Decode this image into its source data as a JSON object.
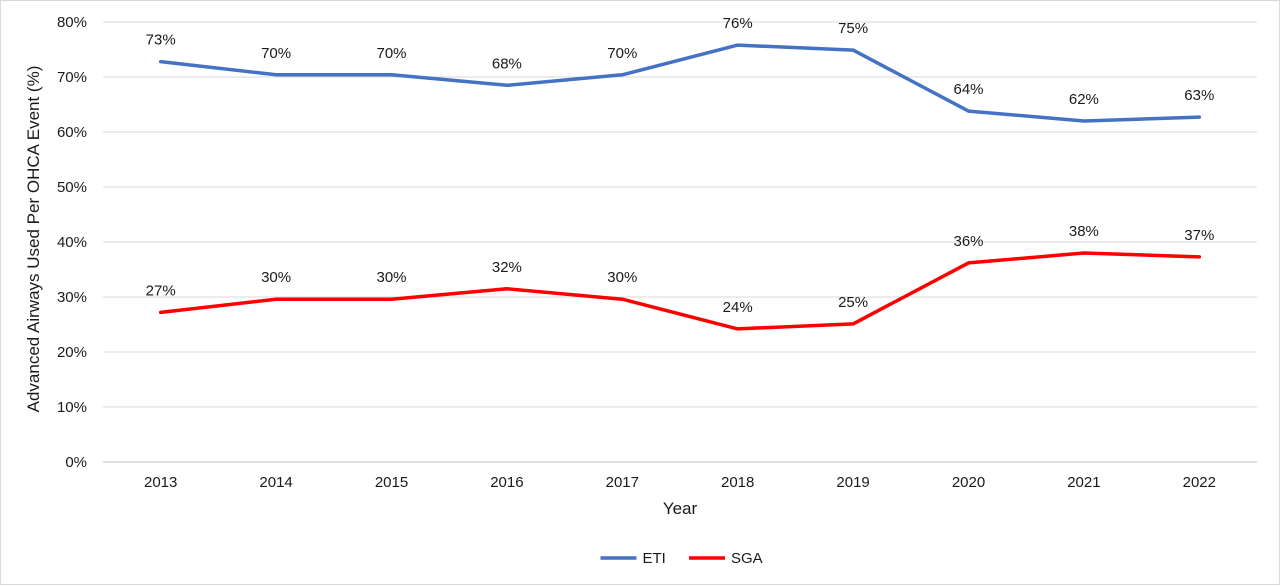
{
  "chart_data": {
    "type": "line",
    "title": "",
    "xlabel": "Year",
    "ylabel": "Advanced Airways Used Per OHCA Event (%)",
    "categories": [
      "2013",
      "2014",
      "2015",
      "2016",
      "2017",
      "2018",
      "2019",
      "2020",
      "2021",
      "2022"
    ],
    "ylim": [
      0,
      80
    ],
    "yticks": [
      0,
      10,
      20,
      30,
      40,
      50,
      60,
      70,
      80
    ],
    "ytick_labels": [
      "0%",
      "10%",
      "20%",
      "30%",
      "40%",
      "50%",
      "60%",
      "70%",
      "80%"
    ],
    "grid": true,
    "legend_position": "bottom",
    "series": [
      {
        "name": "ETI",
        "color": "#4472c4",
        "values": [
          72.8,
          70.4,
          70.4,
          68.5,
          70.4,
          75.8,
          74.9,
          63.8,
          62.0,
          62.7
        ],
        "labels": [
          "73%",
          "70%",
          "70%",
          "68%",
          "70%",
          "76%",
          "75%",
          "64%",
          "62%",
          "63%"
        ]
      },
      {
        "name": "SGA",
        "color": "#ff0000",
        "values": [
          27.2,
          29.6,
          29.6,
          31.5,
          29.6,
          24.2,
          25.1,
          36.2,
          38.0,
          37.3
        ],
        "labels": [
          "27%",
          "30%",
          "30%",
          "32%",
          "30%",
          "24%",
          "25%",
          "36%",
          "38%",
          "37%"
        ]
      }
    ]
  }
}
